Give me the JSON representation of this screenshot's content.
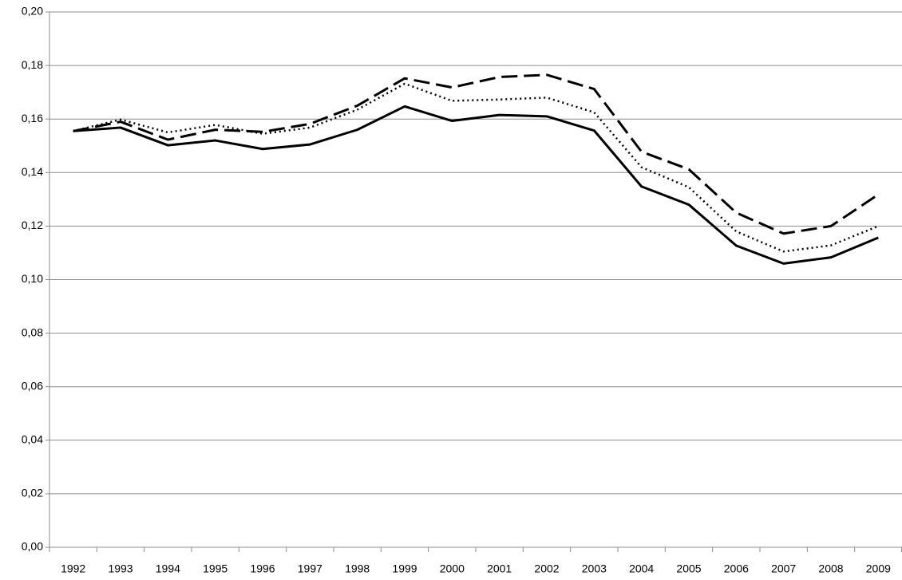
{
  "chart_data": {
    "type": "line",
    "categories": [
      "1992",
      "1993",
      "1994",
      "1995",
      "1996",
      "1997",
      "1998",
      "1999",
      "2000",
      "2001",
      "2002",
      "2003",
      "2004",
      "2005",
      "2006",
      "2007",
      "2008",
      "2009"
    ],
    "series": [
      {
        "color": "#000000",
        "dash": "solid",
        "values": [
          0.1555,
          0.1568,
          0.1502,
          0.152,
          0.1488,
          0.1505,
          0.156,
          0.1647,
          0.1593,
          0.1615,
          0.161,
          0.1557,
          0.1348,
          0.128,
          0.1127,
          0.106,
          0.1083,
          0.1157
        ]
      },
      {
        "color": "#000000",
        "dash": "dotted",
        "values": [
          0.1555,
          0.1598,
          0.155,
          0.1578,
          0.1545,
          0.1568,
          0.1635,
          0.1732,
          0.1668,
          0.1673,
          0.168,
          0.1625,
          0.142,
          0.1345,
          0.118,
          0.1105,
          0.1128,
          0.12
        ]
      },
      {
        "color": "#000000",
        "dash": "dashed",
        "values": [
          0.1555,
          0.159,
          0.1523,
          0.156,
          0.1552,
          0.1582,
          0.165,
          0.1752,
          0.1718,
          0.1757,
          0.1765,
          0.1712,
          0.1478,
          0.1412,
          0.125,
          0.1172,
          0.12,
          0.1318
        ]
      }
    ],
    "ylim": [
      0,
      0.2
    ],
    "yticks": [
      {
        "value": 0,
        "label": "0,00"
      },
      {
        "value": 0.02,
        "label": "0,02"
      },
      {
        "value": 0.04,
        "label": "0,04"
      },
      {
        "value": 0.06,
        "label": "0,06"
      },
      {
        "value": 0.08,
        "label": "0,08"
      },
      {
        "value": 0.1,
        "label": "0,10"
      },
      {
        "value": 0.12,
        "label": "0,12"
      },
      {
        "value": 0.14,
        "label": "0,14"
      },
      {
        "value": 0.16,
        "label": "0,16"
      },
      {
        "value": 0.18,
        "label": "0,18"
      },
      {
        "value": 0.2,
        "label": "0,20"
      }
    ],
    "grid": true
  }
}
